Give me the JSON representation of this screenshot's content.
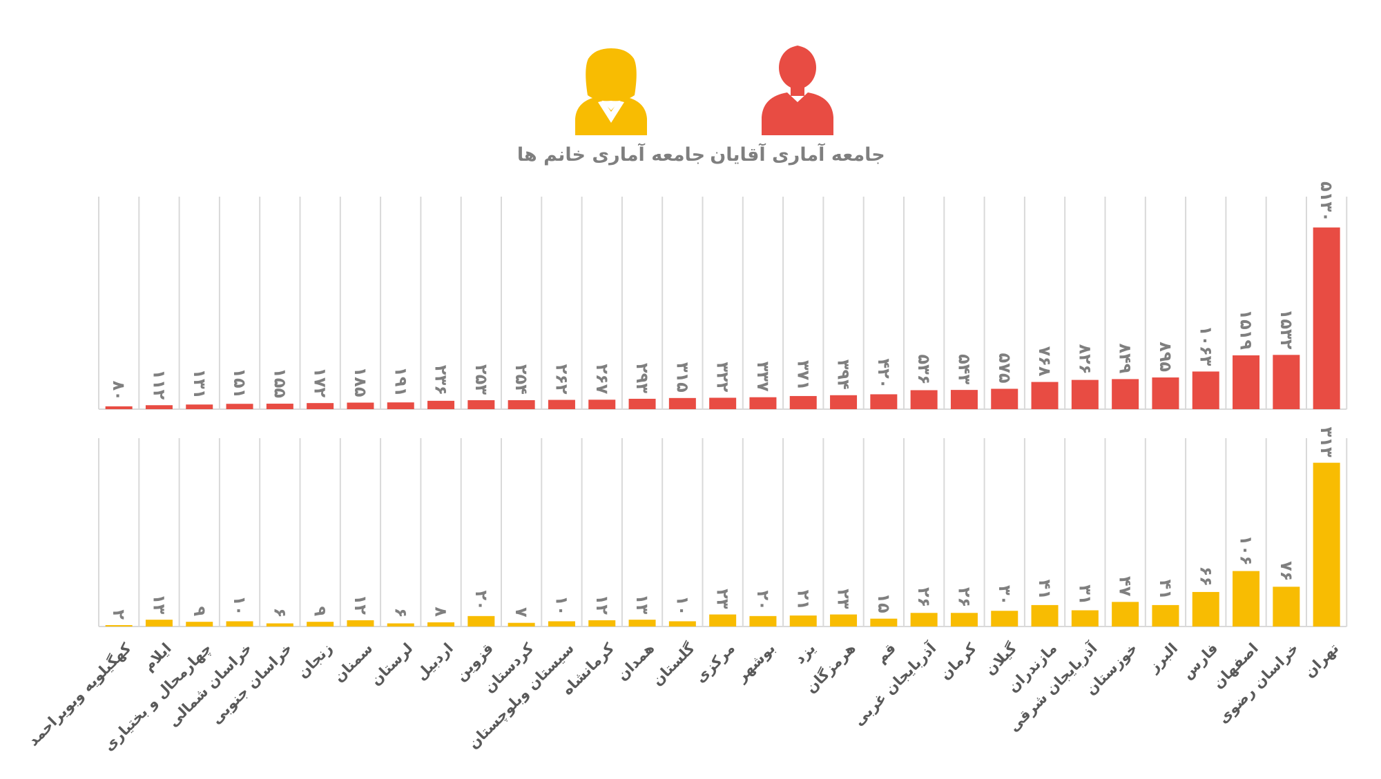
{
  "legend": {
    "men_label": "جامعه آماری آقایان",
    "women_label": "جامعه آماری خانم ها",
    "men_icon": "male-user-icon",
    "women_icon": "female-user-icon"
  },
  "colors": {
    "men": "#E84C43",
    "women": "#F8BC02",
    "grid": "#D9D9D9",
    "label": "#7F7F7F",
    "axis_text": "#595959"
  },
  "chart_data": [
    {
      "type": "bar",
      "title": "",
      "series": [
        {
          "name": "جامعه آماری آقایان",
          "color": "#E84C43",
          "values": [
            80,
            112,
            131,
            151,
            155,
            172,
            185,
            191,
            236,
            253,
            254,
            262,
            267,
            293,
            315,
            322,
            337,
            371,
            394,
            420,
            536,
            543,
            575,
            768,
            826,
            849,
            895,
            1063,
            1519,
            1532,
            5130
          ]
        }
      ],
      "categories": [
        "کهگیلویه وبویراحمد",
        "ایلام",
        "چهارمحال و بختیاری",
        "خراسان شمالی",
        "خراسان جنوبی",
        "زنجان",
        "سمنان",
        "لرستان",
        "اردبیل",
        "قزوین",
        "کردستان",
        "سیستان وبلوچستان",
        "کرمانشاه",
        "همدان",
        "گلستان",
        "مرکزی",
        "بوشهر",
        "یزد",
        "هرمزگان",
        "قم",
        "آذربایجان غربی",
        "کرمان",
        "گیلان",
        "مازندران",
        "آذربایجان شرقی",
        "خوزستان",
        "البرز",
        "فارس",
        "اصفهان",
        "خراسان رضوی",
        "تهران"
      ],
      "data_labels": [
        "۸۰",
        "۱۱۲",
        "۱۳۱",
        "۱۵۱",
        "۱۵۵",
        "۱۷۲",
        "۱۸۵",
        "۱۹۱",
        "۲۳۶",
        "۲۵۳",
        "۲۵۴",
        "۲۶۲",
        "۲۶۷",
        "۲۹۳",
        "۳۱۵",
        "۳۲۲",
        "۳۳۷",
        "۳۷۱",
        "۳۹۴",
        "۴۲۰",
        "۵۳۶",
        "۵۴۳",
        "۵۷۵",
        "۷۶۸",
        "۸۲۶",
        "۸۴۹",
        "۸۹۵",
        "۱۰۶۳",
        "۱۵۱۹",
        "۱۵۳۲",
        "۵۱۳۰"
      ],
      "ylim": [
        0,
        6000
      ],
      "grid": true,
      "legend_position": "top"
    },
    {
      "type": "bar",
      "title": "",
      "series": [
        {
          "name": "جامعه آماری خانم ها",
          "color": "#F8BC02",
          "values": [
            2,
            13,
            9,
            10,
            6,
            9,
            12,
            6,
            8,
            20,
            7,
            10,
            12,
            13,
            10,
            23,
            20,
            21,
            23,
            15,
            26,
            26,
            30,
            41,
            31,
            47,
            41,
            66,
            106,
            76,
            313
          ]
        }
      ],
      "categories": [
        "کهگیلویه وبویراحمد",
        "ایلام",
        "چهارمحال و بختیاری",
        "خراسان شمالی",
        "خراسان جنوبی",
        "زنجان",
        "سمنان",
        "لرستان",
        "اردبیل",
        "قزوین",
        "کردستان",
        "سیستان وبلوچستان",
        "کرمانشاه",
        "همدان",
        "گلستان",
        "مرکزی",
        "بوشهر",
        "یزد",
        "هرمزگان",
        "قم",
        "آذربایجان غربی",
        "کرمان",
        "گیلان",
        "مازندران",
        "آذربایجان شرقی",
        "خوزستان",
        "البرز",
        "فارس",
        "اصفهان",
        "خراسان رضوی",
        "تهران"
      ],
      "data_labels": [
        "۲",
        "۱۳",
        "۹",
        "۱۰",
        "۶",
        "۹",
        "۱۲",
        "۶",
        "۸",
        "۲۰",
        "۷",
        "۱۰",
        "۱۲",
        "۱۳",
        "۱۰",
        "۲۳",
        "۲۰",
        "۲۱",
        "۲۳",
        "۱۵",
        "۲۶",
        "۲۶",
        "۳۰",
        "۴۱",
        "۳۱",
        "۴۷",
        "۴۱",
        "۶۶",
        "۱۰۶",
        "۷۶",
        "۳۱۳"
      ],
      "ylim": [
        0,
        360
      ],
      "grid": true
    }
  ]
}
